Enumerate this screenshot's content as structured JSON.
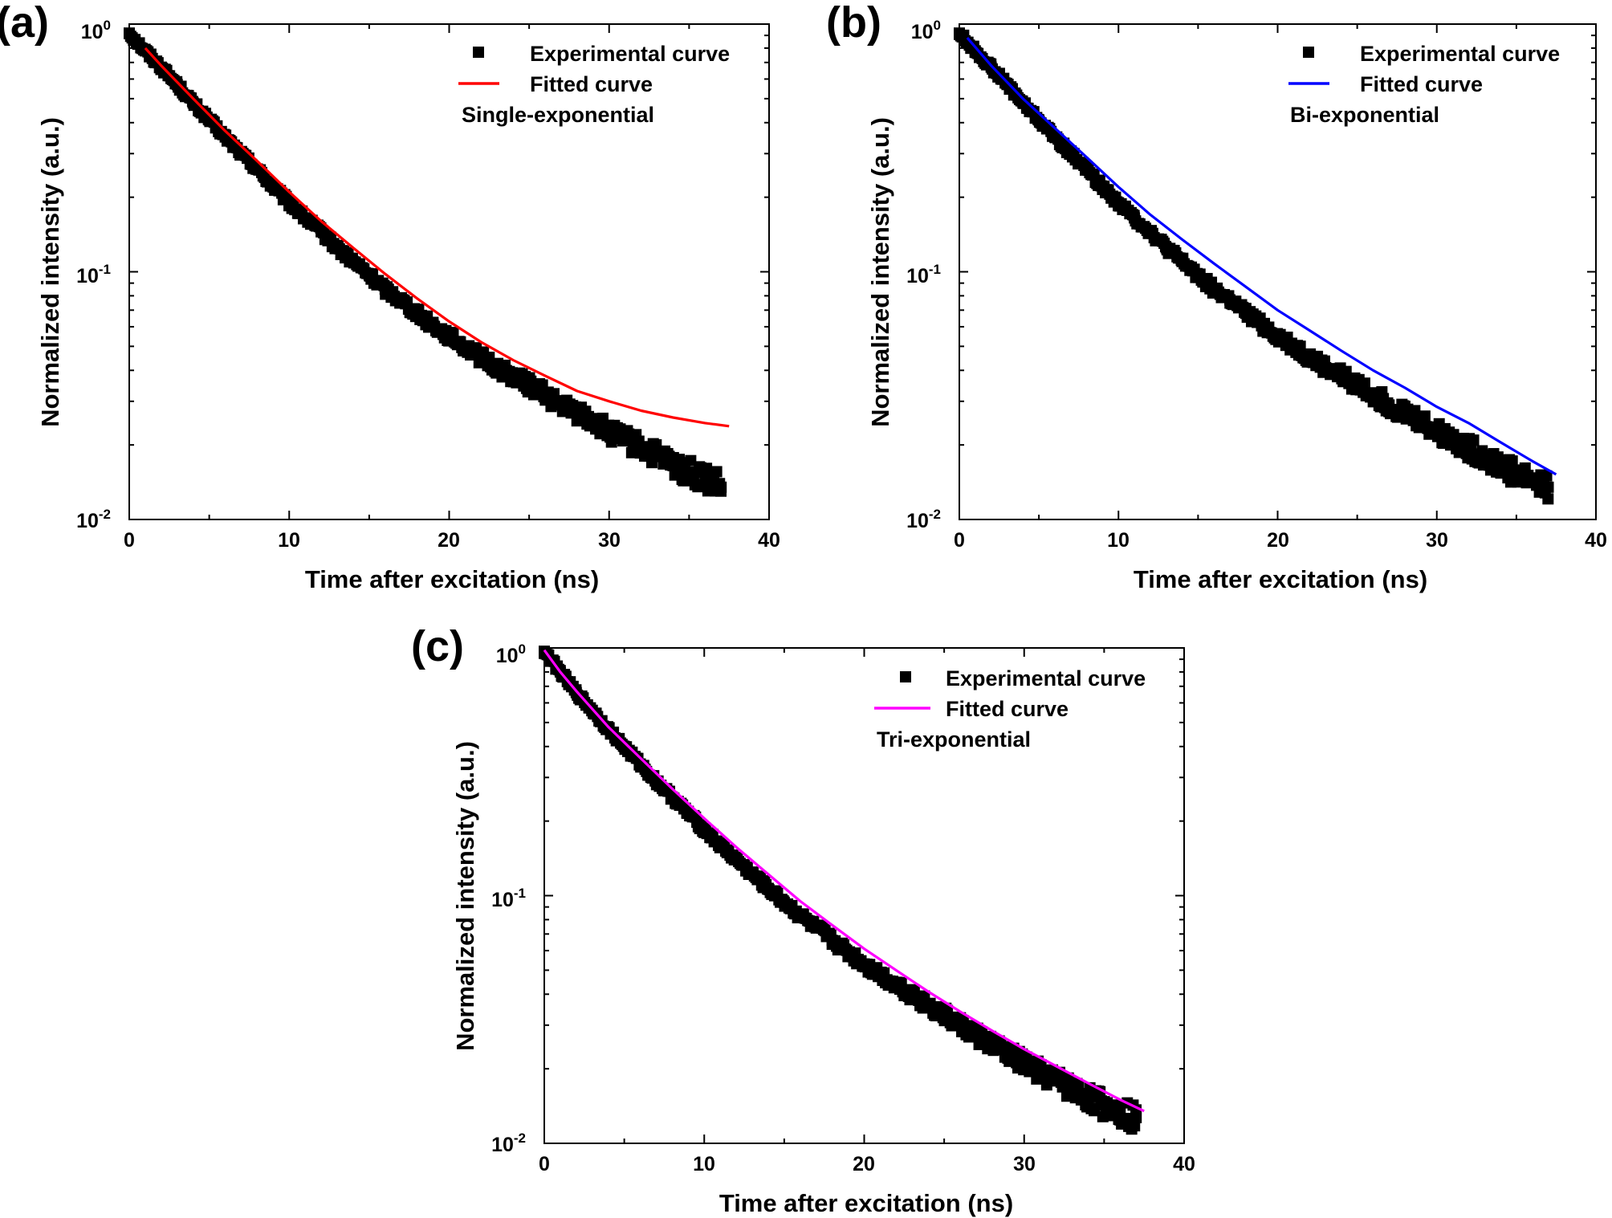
{
  "chart_data": [
    {
      "panel_label": "(a)",
      "type": "scatter",
      "title": "",
      "xlabel": "Time after excitation (ns)",
      "ylabel": "Normalized intensity (a.u.)",
      "xlim": [
        0,
        40
      ],
      "ylim": [
        0.01,
        1
      ],
      "yscale": "log",
      "x_ticks": [
        "0",
        "10",
        "20",
        "30",
        "40"
      ],
      "y_ticks": [
        {
          "base": "10",
          "exp": "0"
        },
        {
          "base": "10",
          "exp": "-1"
        },
        {
          "base": "10",
          "exp": "-2"
        }
      ],
      "legend_position": "top-right",
      "legend": [
        "Experimental curve",
        "Fitted curve"
      ],
      "annotation": "Single-exponential",
      "fit_color": "#ff0000",
      "series": [
        {
          "name": "Experimental curve",
          "style": "markers",
          "color": "#000000",
          "x": [
            0,
            1,
            2,
            3,
            4,
            5,
            6,
            7,
            8,
            9,
            10,
            11,
            12,
            13,
            14,
            15,
            16,
            17,
            18,
            19,
            20,
            21,
            22,
            23,
            24,
            25,
            26,
            27,
            28,
            29,
            30,
            31,
            32,
            33,
            34,
            35,
            36,
            37
          ],
          "y": [
            0.92,
            0.78,
            0.67,
            0.57,
            0.48,
            0.41,
            0.35,
            0.3,
            0.26,
            0.22,
            0.19,
            0.165,
            0.145,
            0.125,
            0.11,
            0.097,
            0.085,
            0.077,
            0.068,
            0.061,
            0.055,
            0.05,
            0.045,
            0.041,
            0.038,
            0.035,
            0.032,
            0.029,
            0.027,
            0.025,
            0.0225,
            0.021,
            0.0195,
            0.018,
            0.0165,
            0.0155,
            0.0145,
            0.0135
          ]
        },
        {
          "name": "Fitted curve",
          "style": "line",
          "color": "#ff0000",
          "x": [
            1,
            2,
            4,
            6,
            8,
            10,
            12,
            14,
            16,
            18,
            20,
            22,
            24,
            26,
            28,
            30,
            32,
            34,
            36,
            37.5
          ],
          "y": [
            0.8,
            0.68,
            0.5,
            0.37,
            0.28,
            0.21,
            0.16,
            0.125,
            0.098,
            0.078,
            0.063,
            0.052,
            0.044,
            0.038,
            0.033,
            0.03,
            0.0275,
            0.0258,
            0.0245,
            0.0238
          ]
        }
      ]
    },
    {
      "panel_label": "(b)",
      "type": "scatter",
      "title": "",
      "xlabel": "Time after excitation (ns)",
      "ylabel": "Normalized intensity (a.u.)",
      "xlim": [
        0,
        40
      ],
      "ylim": [
        0.01,
        1
      ],
      "yscale": "log",
      "x_ticks": [
        "0",
        "10",
        "20",
        "30",
        "40"
      ],
      "y_ticks": [
        {
          "base": "10",
          "exp": "0"
        },
        {
          "base": "10",
          "exp": "-1"
        },
        {
          "base": "10",
          "exp": "-2"
        }
      ],
      "legend_position": "top-right",
      "legend": [
        "Experimental curve",
        "Fitted curve"
      ],
      "annotation": "Bi-exponential",
      "fit_color": "#0000ff",
      "series": [
        {
          "name": "Experimental curve",
          "style": "markers",
          "color": "#000000",
          "x": [
            0,
            1,
            2,
            3,
            4,
            5,
            6,
            7,
            8,
            9,
            10,
            11,
            12,
            13,
            14,
            15,
            16,
            17,
            18,
            19,
            20,
            21,
            22,
            23,
            24,
            25,
            26,
            27,
            28,
            29,
            30,
            31,
            32,
            33,
            34,
            35,
            36,
            37
          ],
          "y": [
            0.92,
            0.78,
            0.67,
            0.57,
            0.48,
            0.41,
            0.35,
            0.3,
            0.26,
            0.22,
            0.19,
            0.165,
            0.145,
            0.125,
            0.11,
            0.097,
            0.085,
            0.077,
            0.068,
            0.061,
            0.055,
            0.05,
            0.045,
            0.041,
            0.038,
            0.035,
            0.032,
            0.029,
            0.027,
            0.025,
            0.0225,
            0.021,
            0.0195,
            0.018,
            0.0165,
            0.0155,
            0.0145,
            0.0135
          ]
        },
        {
          "name": "Fitted curve",
          "style": "line",
          "color": "#0000ff",
          "x": [
            0.5,
            2,
            4,
            6,
            8,
            10,
            12,
            14,
            16,
            18,
            20,
            22,
            24,
            26,
            28,
            30,
            32,
            34,
            36,
            37.5
          ],
          "y": [
            0.88,
            0.68,
            0.5,
            0.38,
            0.29,
            0.22,
            0.17,
            0.135,
            0.108,
            0.087,
            0.07,
            0.058,
            0.048,
            0.04,
            0.034,
            0.0285,
            0.0245,
            0.0205,
            0.0172,
            0.0152
          ]
        }
      ]
    },
    {
      "panel_label": "(c)",
      "type": "scatter",
      "title": "",
      "xlabel": "Time after excitation (ns)",
      "ylabel": "Normalized intensity (a.u.)",
      "xlim": [
        0,
        40
      ],
      "ylim": [
        0.01,
        1
      ],
      "yscale": "log",
      "x_ticks": [
        "0",
        "10",
        "20",
        "30",
        "40"
      ],
      "y_ticks": [
        {
          "base": "10",
          "exp": "0"
        },
        {
          "base": "10",
          "exp": "-1"
        },
        {
          "base": "10",
          "exp": "-2"
        }
      ],
      "legend_position": "top-right",
      "legend": [
        "Experimental curve",
        "Fitted curve"
      ],
      "annotation": "Tri-exponential",
      "fit_color": "#ff00ff",
      "series": [
        {
          "name": "Experimental curve",
          "style": "markers",
          "color": "#000000",
          "x": [
            0,
            1,
            2,
            3,
            4,
            5,
            6,
            7,
            8,
            9,
            10,
            11,
            12,
            13,
            14,
            15,
            16,
            17,
            18,
            19,
            20,
            21,
            22,
            23,
            24,
            25,
            26,
            27,
            28,
            29,
            30,
            31,
            32,
            33,
            34,
            35,
            36,
            37
          ],
          "y": [
            0.97,
            0.8,
            0.66,
            0.56,
            0.47,
            0.4,
            0.34,
            0.29,
            0.25,
            0.215,
            0.185,
            0.16,
            0.14,
            0.122,
            0.107,
            0.094,
            0.083,
            0.074,
            0.066,
            0.059,
            0.053,
            0.048,
            0.044,
            0.04,
            0.036,
            0.033,
            0.03,
            0.0275,
            0.025,
            0.0228,
            0.021,
            0.0193,
            0.018,
            0.0165,
            0.0153,
            0.0143,
            0.0135,
            0.0127
          ]
        },
        {
          "name": "Fitted curve",
          "style": "line",
          "color": "#ff00ff",
          "x": [
            0,
            1,
            2,
            4,
            6,
            8,
            10,
            12,
            14,
            16,
            18,
            20,
            22,
            24,
            26,
            28,
            30,
            32,
            34,
            36,
            37.5
          ],
          "y": [
            0.98,
            0.8,
            0.67,
            0.48,
            0.36,
            0.27,
            0.205,
            0.157,
            0.122,
            0.095,
            0.076,
            0.061,
            0.05,
            0.041,
            0.034,
            0.0285,
            0.024,
            0.0205,
            0.0175,
            0.015,
            0.0135
          ]
        }
      ]
    }
  ]
}
